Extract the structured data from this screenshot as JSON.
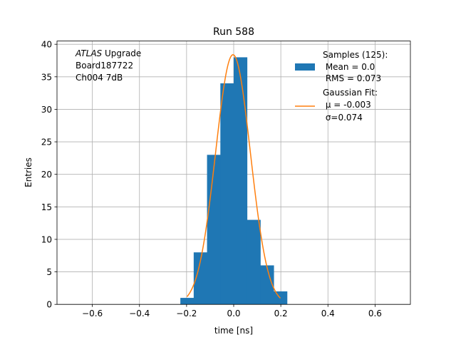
{
  "chart_data": {
    "type": "bar",
    "title": "Run 588",
    "xlabel": "time [ns]",
    "ylabel": "Entries",
    "xlim": [
      -0.75,
      0.75
    ],
    "ylim": [
      0,
      40.5
    ],
    "xticks": [
      -0.6,
      -0.4,
      -0.2,
      0.0,
      0.2,
      0.4,
      0.6
    ],
    "xtick_labels": [
      "−0.6",
      "−0.4",
      "−0.2",
      "0.0",
      "0.2",
      "0.4",
      "0.6"
    ],
    "yticks": [
      0,
      5,
      10,
      15,
      20,
      25,
      30,
      35,
      40
    ],
    "ytick_labels": [
      "0",
      "5",
      "10",
      "15",
      "20",
      "25",
      "30",
      "35",
      "40"
    ],
    "grid": true,
    "series": [
      {
        "name": "Samples (125):",
        "kind": "histogram",
        "color": "#1f77b4",
        "bin_edges": [
          -0.2264,
          -0.1698,
          -0.1132,
          -0.0566,
          0.0,
          0.0566,
          0.1132,
          0.1698,
          0.2264
        ],
        "counts": [
          1,
          8,
          23,
          34,
          38,
          13,
          6,
          2
        ]
      },
      {
        "name": "Gaussian Fit:",
        "kind": "line",
        "color": "#ff7f0e",
        "mu": -0.003,
        "sigma": 0.074,
        "amplitude": 38.4,
        "x_range": [
          -0.1981,
          0.1981
        ]
      }
    ],
    "legend": {
      "position": "top-right",
      "entries": [
        {
          "lines": [
            "Samples (125):",
            " Mean = 0.0",
            " RMS = 0.073"
          ]
        },
        {
          "lines": [
            "Gaussian Fit:",
            " μ = -0.003",
            " σ=0.074"
          ]
        }
      ]
    },
    "annotation": {
      "position": "top-left",
      "lines": [
        {
          "italic": "ATLAS",
          "rest": " Upgrade"
        },
        {
          "italic": "",
          "rest": " Board187722"
        },
        {
          "italic": "",
          "rest": " Ch004 7dB"
        }
      ]
    }
  }
}
